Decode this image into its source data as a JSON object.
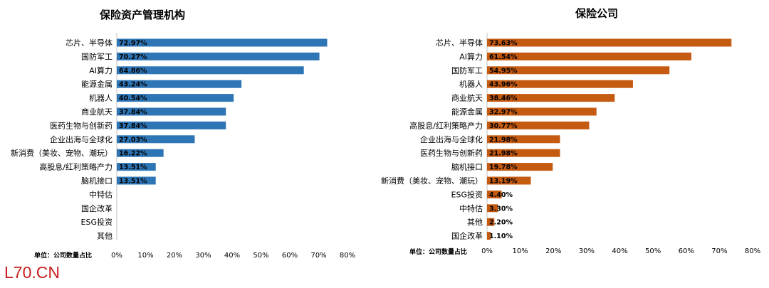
{
  "watermark": "L70.CN",
  "chart_data": [
    {
      "type": "bar",
      "orientation": "horizontal",
      "title": "保险资产管理机构",
      "unit_note": "单位：公司数量占比",
      "color": "#2e75b6",
      "xlim": [
        0,
        80
      ],
      "x_ticks": [
        "0%",
        "10%",
        "20%",
        "30%",
        "40%",
        "50%",
        "60%",
        "70%",
        "80%"
      ],
      "grid": false,
      "categories": [
        "芯片、半导体",
        "国防军工",
        "AI算力",
        "能源金属",
        "机器人",
        "商业航天",
        "医药生物与创新药",
        "企业出海与全球化",
        "新消费（美妆、宠物、潮玩）",
        "高股息/红利策略产力",
        "脑机接口",
        "中特估",
        "国企改革",
        "ESG投资",
        "其他"
      ],
      "values": [
        72.97,
        70.27,
        64.86,
        43.24,
        40.54,
        37.84,
        37.84,
        27.03,
        16.22,
        13.51,
        13.51,
        null,
        null,
        null,
        null
      ],
      "labels": [
        "72.97%",
        "70.27%",
        "64.86%",
        "43.24%",
        "40.54%",
        "37.84%",
        "37.84%",
        "27.03%",
        "16.22%",
        "13.51%",
        "13.51%",
        "",
        "",
        "",
        ""
      ]
    },
    {
      "type": "bar",
      "orientation": "horizontal",
      "title": "保险公司",
      "unit_note": "单位：公司数量占比",
      "color": "#c55a11",
      "xlim": [
        0,
        80
      ],
      "x_ticks": [
        "0%",
        "10%",
        "20%",
        "30%",
        "40%",
        "50%",
        "60%",
        "70%",
        "80%"
      ],
      "grid": false,
      "categories": [
        "芯片、半导体",
        "AI算力",
        "国防军工",
        "机器人",
        "商业航天",
        "能源金属",
        "高股息/红利策略产力",
        "企业出海与全球化",
        "医药生物与创新药",
        "脑机接口",
        "新消费（美妆、宠物、潮玩）",
        "ESG投资",
        "中特估",
        "其他",
        "国企改革"
      ],
      "values": [
        73.63,
        61.54,
        54.95,
        43.96,
        38.46,
        32.97,
        30.77,
        21.98,
        21.98,
        19.78,
        13.19,
        4.4,
        3.3,
        2.2,
        1.1
      ],
      "labels": [
        "73.63%",
        "61.54%",
        "54.95%",
        "43.96%",
        "38.46%",
        "32.97%",
        "30.77%",
        "21.98%",
        "21.98%",
        "19.78%",
        "13.19%",
        "4.40%",
        "3.30%",
        "2.20%",
        "1.10%"
      ]
    }
  ]
}
